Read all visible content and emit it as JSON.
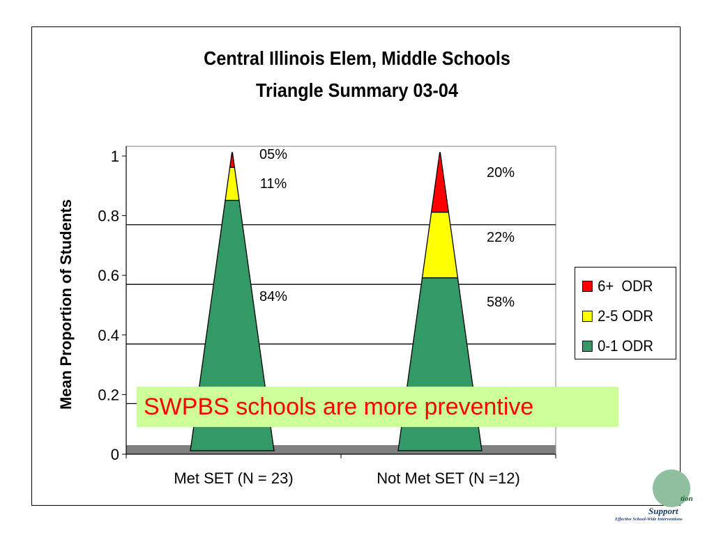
{
  "chart_data": {
    "type": "area",
    "title": "Central Illinois Elem, Middle Schools",
    "subtitle": "Triangle Summary 03-04",
    "ylabel": "Mean Proportion of Students",
    "xlabel": "",
    "ylim": [
      0,
      1
    ],
    "yticks": [
      "0",
      "0.2",
      "0.4",
      "0.6",
      "0.8",
      "1"
    ],
    "ytick_values": [
      0,
      0.2,
      0.4,
      0.6,
      0.8,
      1
    ],
    "grid": true,
    "legend_position": "right",
    "categories": [
      "Met SET (N = 23)",
      "Not Met SET (N =12)"
    ],
    "series": [
      {
        "name": "0-1 ODR",
        "color": "#339966",
        "values": [
          0.84,
          0.58
        ],
        "labels": [
          "84%",
          "58%"
        ]
      },
      {
        "name": "2-5 ODR",
        "color": "#ffff00",
        "values": [
          0.11,
          0.22
        ],
        "labels": [
          "11%",
          "22%"
        ]
      },
      {
        "name": "6+  ODR",
        "color": "#ff0000",
        "values": [
          0.05,
          0.2
        ],
        "labels": [
          "05%",
          "20%"
        ]
      }
    ]
  },
  "callout": {
    "text": "SWPBS schools are more preventive",
    "text_color": "#ff0000",
    "background": "#ccff99"
  },
  "logo": {
    "line1": "tion",
    "line2": "Support",
    "line3": "Effective School-Wide Interventions"
  }
}
